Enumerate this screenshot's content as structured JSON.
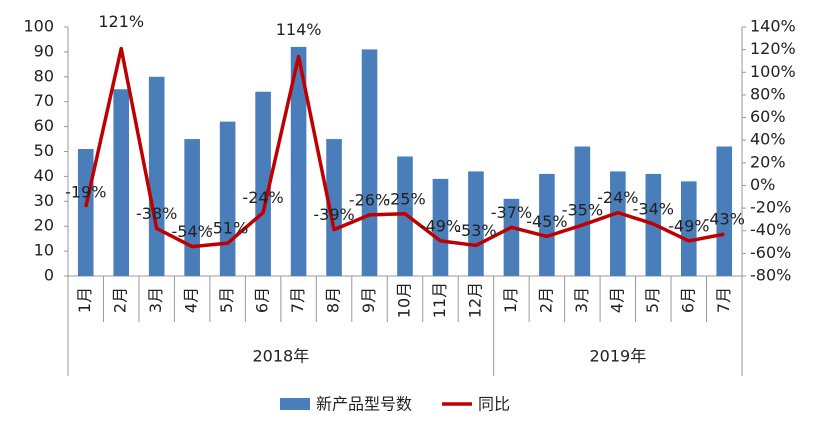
{
  "chart_data": {
    "type": "bar",
    "categories": [
      "1月",
      "2月",
      "3月",
      "4月",
      "5月",
      "6月",
      "7月",
      "8月",
      "9月",
      "10月",
      "11月",
      "12月",
      "1月",
      "2月",
      "3月",
      "4月",
      "5月",
      "6月",
      "7月"
    ],
    "groups": [
      "2018年",
      "2019年"
    ],
    "series": [
      {
        "name": "新产品型号数",
        "type": "bar",
        "color": "#4a7ebb",
        "values": [
          51,
          75,
          80,
          55,
          62,
          74,
          92,
          55,
          91,
          48,
          39,
          42,
          31,
          41,
          52,
          42,
          41,
          38,
          52
        ]
      },
      {
        "name": "同比",
        "type": "line",
        "axis": "y2",
        "color": "#c00000",
        "values": [
          -19,
          121,
          -38,
          -54,
          -51,
          -24,
          114,
          -39,
          -26,
          -25,
          -49,
          -53,
          -37,
          -45,
          -35,
          -24,
          -34,
          -49,
          -43
        ],
        "value_labels": [
          "-19%",
          "121%",
          "-38%",
          "-54%",
          "-51%",
          "-24%",
          "114%",
          "-39%",
          "-26%",
          "-25%",
          "-49%",
          "-53%",
          "-37%",
          "-45%",
          "-35%",
          "-24%",
          "-34%",
          "-49%",
          "-43%"
        ]
      }
    ],
    "ylim": [
      0,
      100
    ],
    "yticks": [
      0,
      10,
      20,
      30,
      40,
      50,
      60,
      70,
      80,
      90,
      100
    ],
    "y2lim": [
      -80,
      140
    ],
    "y2ticks": [
      {
        "value": -80,
        "label": "-80%"
      },
      {
        "value": -60,
        "label": "-60%"
      },
      {
        "value": -40,
        "label": "-40%"
      },
      {
        "value": -20,
        "label": "-20%"
      },
      {
        "value": 0,
        "label": "0%"
      },
      {
        "value": 20,
        "label": "20%"
      },
      {
        "value": 40,
        "label": "40%"
      },
      {
        "value": 60,
        "label": "60%"
      },
      {
        "value": 80,
        "label": "80%"
      },
      {
        "value": 100,
        "label": "100%"
      },
      {
        "value": 120,
        "label": "120%"
      },
      {
        "value": 140,
        "label": "140%"
      }
    ],
    "grid": false,
    "legend": "bottom"
  }
}
